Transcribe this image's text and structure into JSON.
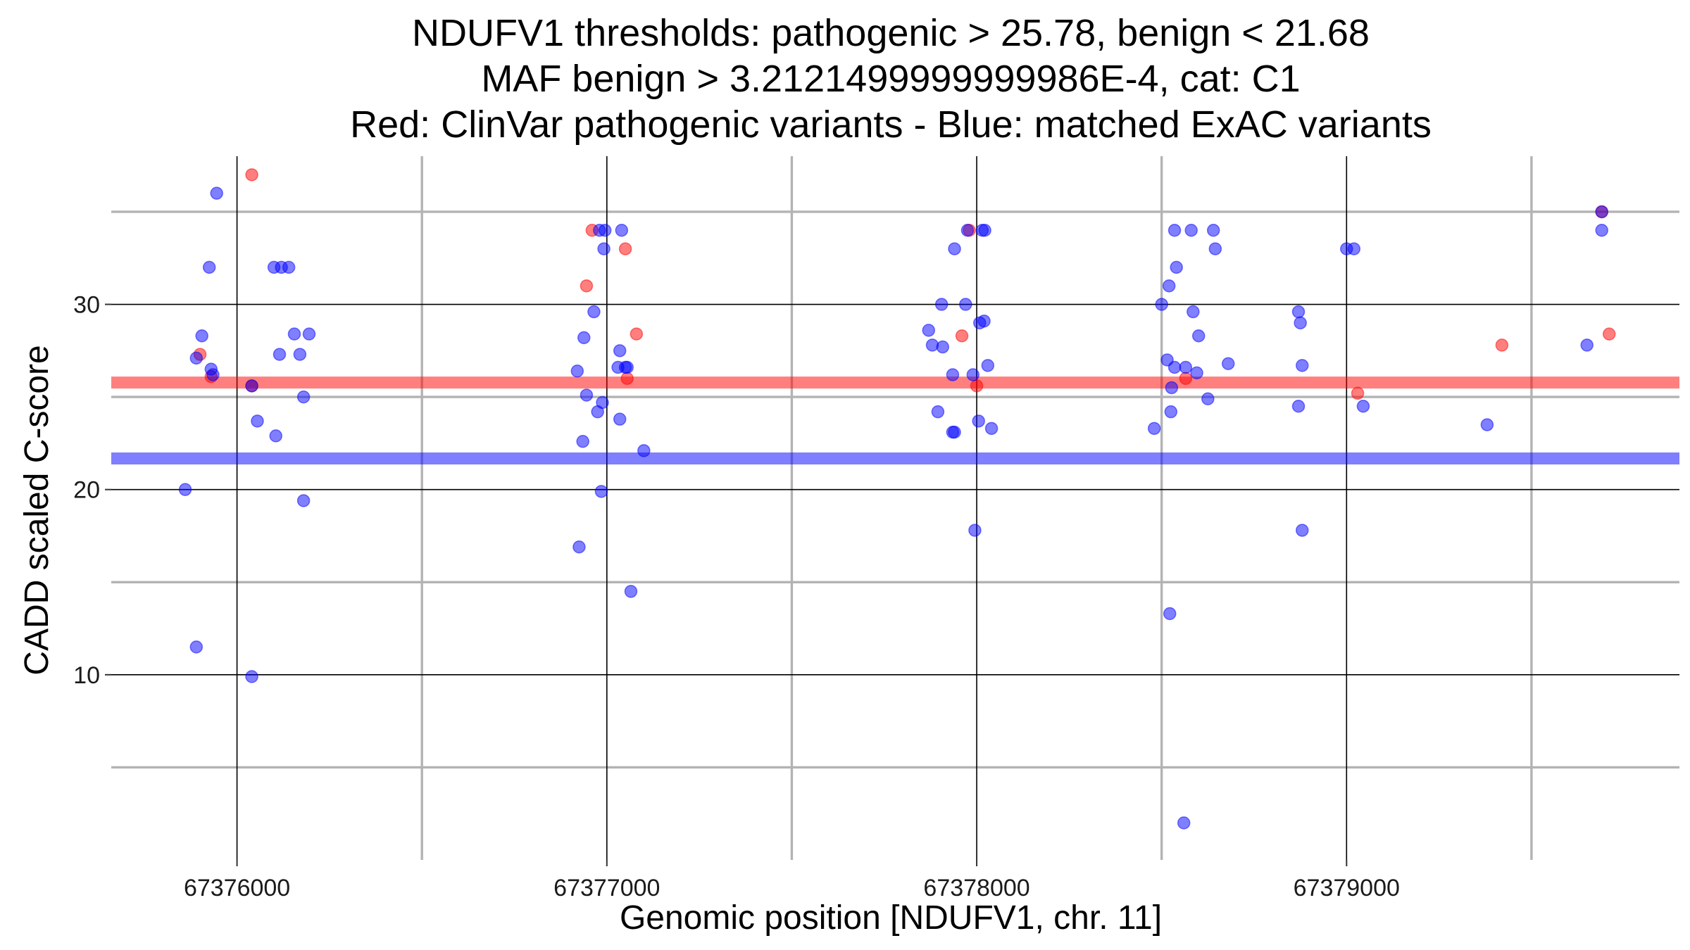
{
  "chart_data": {
    "type": "scatter",
    "title_lines": [
      "NDUFV1 thresholds: pathogenic > 25.78, benign < 21.68",
      "MAF benign > 3.2121499999999986E-4, cat: C1",
      "Red: ClinVar pathogenic variants - Blue: matched ExAC variants"
    ],
    "xlabel": "Genomic position [NDUFV1, chr. 11]",
    "ylabel": "CADD scaled C-score",
    "xlim": [
      67375660,
      67379900
    ],
    "ylim": [
      0,
      38
    ],
    "x_ticks": [
      67376000,
      67377000,
      67378000,
      67379000
    ],
    "x_tick_labels": [
      "67376000",
      "67377000",
      "67378000",
      "67379000"
    ],
    "x_minor": [
      67376500,
      67377500,
      67378500,
      67379500
    ],
    "y_ticks": [
      10,
      20,
      30
    ],
    "y_tick_labels": [
      "10",
      "20",
      "30"
    ],
    "y_minor": [
      5,
      15,
      25,
      35
    ],
    "grid": true,
    "colors": {
      "pathogenic": "#ff0000",
      "benign": "#0000ff"
    },
    "thresholds": [
      {
        "name": "pathogenic",
        "value": 25.78,
        "color": "#ff0000"
      },
      {
        "name": "benign",
        "value": 21.68,
        "color": "#0000ff"
      }
    ],
    "series": [
      {
        "color": "#ff0000",
        "points": [
          [
            67375900,
            27.3
          ],
          [
            67375930,
            26.1
          ],
          [
            67376040,
            37.0
          ],
          [
            67376040,
            25.6
          ],
          [
            67376945,
            31.0
          ],
          [
            67376960,
            34.0
          ],
          [
            67377050,
            33.0
          ],
          [
            67377055,
            26.0
          ],
          [
            67377080,
            28.4
          ],
          [
            67377960,
            28.3
          ],
          [
            67377980,
            34.0
          ],
          [
            67378000,
            25.6
          ],
          [
            67378565,
            26.0
          ],
          [
            67379030,
            25.2
          ],
          [
            67379420,
            27.8
          ],
          [
            67379690,
            35.0
          ],
          [
            67379710,
            28.4
          ]
        ]
      },
      {
        "color": "#0000ff",
        "points": [
          [
            67375860,
            20.0
          ],
          [
            67375890,
            27.1
          ],
          [
            67375890,
            11.5
          ],
          [
            67375905,
            28.3
          ],
          [
            67375925,
            32.0
          ],
          [
            67375930,
            26.5
          ],
          [
            67375935,
            26.2
          ],
          [
            67375945,
            36.0
          ],
          [
            67376040,
            25.6
          ],
          [
            67376040,
            9.9
          ],
          [
            67376055,
            23.7
          ],
          [
            67376100,
            32.0
          ],
          [
            67376105,
            22.9
          ],
          [
            67376115,
            27.3
          ],
          [
            67376120,
            32.0
          ],
          [
            67376140,
            32.0
          ],
          [
            67376155,
            28.4
          ],
          [
            67376170,
            27.3
          ],
          [
            67376180,
            25.0
          ],
          [
            67376180,
            19.4
          ],
          [
            67376195,
            28.4
          ],
          [
            67376920,
            26.4
          ],
          [
            67376925,
            16.9
          ],
          [
            67376935,
            22.6
          ],
          [
            67376938,
            28.2
          ],
          [
            67376945,
            25.1
          ],
          [
            67376965,
            29.6
          ],
          [
            67376975,
            24.2
          ],
          [
            67376980,
            34.0
          ],
          [
            67376985,
            19.9
          ],
          [
            67376988,
            24.7
          ],
          [
            67376992,
            33.0
          ],
          [
            67376995,
            34.0
          ],
          [
            67377030,
            26.6
          ],
          [
            67377035,
            27.5
          ],
          [
            67377035,
            23.8
          ],
          [
            67377040,
            34.0
          ],
          [
            67377050,
            26.6
          ],
          [
            67377055,
            26.6
          ],
          [
            67377065,
            14.5
          ],
          [
            67377100,
            22.1
          ],
          [
            67377870,
            28.6
          ],
          [
            67377880,
            27.8
          ],
          [
            67377895,
            24.2
          ],
          [
            67377905,
            30.0
          ],
          [
            67377908,
            27.7
          ],
          [
            67377935,
            23.1
          ],
          [
            67377935,
            26.2
          ],
          [
            67377940,
            33.0
          ],
          [
            67377940,
            23.1
          ],
          [
            67377970,
            30.0
          ],
          [
            67377975,
            34.0
          ],
          [
            67377990,
            26.2
          ],
          [
            67377995,
            17.8
          ],
          [
            67378005,
            23.7
          ],
          [
            67378008,
            29.0
          ],
          [
            67378015,
            34.0
          ],
          [
            67378020,
            29.1
          ],
          [
            67378022,
            34.0
          ],
          [
            67378030,
            26.7
          ],
          [
            67378040,
            23.3
          ],
          [
            67378480,
            23.3
          ],
          [
            67378500,
            30.0
          ],
          [
            67378515,
            27.0
          ],
          [
            67378520,
            31.0
          ],
          [
            67378522,
            13.3
          ],
          [
            67378525,
            24.2
          ],
          [
            67378527,
            25.5
          ],
          [
            67378535,
            34.0
          ],
          [
            67378535,
            26.6
          ],
          [
            67378540,
            32.0
          ],
          [
            67378560,
            2.0
          ],
          [
            67378565,
            26.6
          ],
          [
            67378580,
            34.0
          ],
          [
            67378585,
            29.6
          ],
          [
            67378595,
            26.3
          ],
          [
            67378600,
            28.3
          ],
          [
            67378625,
            24.9
          ],
          [
            67378640,
            34.0
          ],
          [
            67378645,
            33.0
          ],
          [
            67378680,
            26.8
          ],
          [
            67378870,
            29.6
          ],
          [
            67378870,
            24.5
          ],
          [
            67378875,
            29.0
          ],
          [
            67378880,
            26.7
          ],
          [
            67378880,
            17.8
          ],
          [
            67379000,
            33.0
          ],
          [
            67379020,
            33.0
          ],
          [
            67379045,
            24.5
          ],
          [
            67379380,
            23.5
          ],
          [
            67379650,
            27.8
          ],
          [
            67379690,
            35.0
          ],
          [
            67379690,
            34.0
          ]
        ]
      }
    ]
  }
}
